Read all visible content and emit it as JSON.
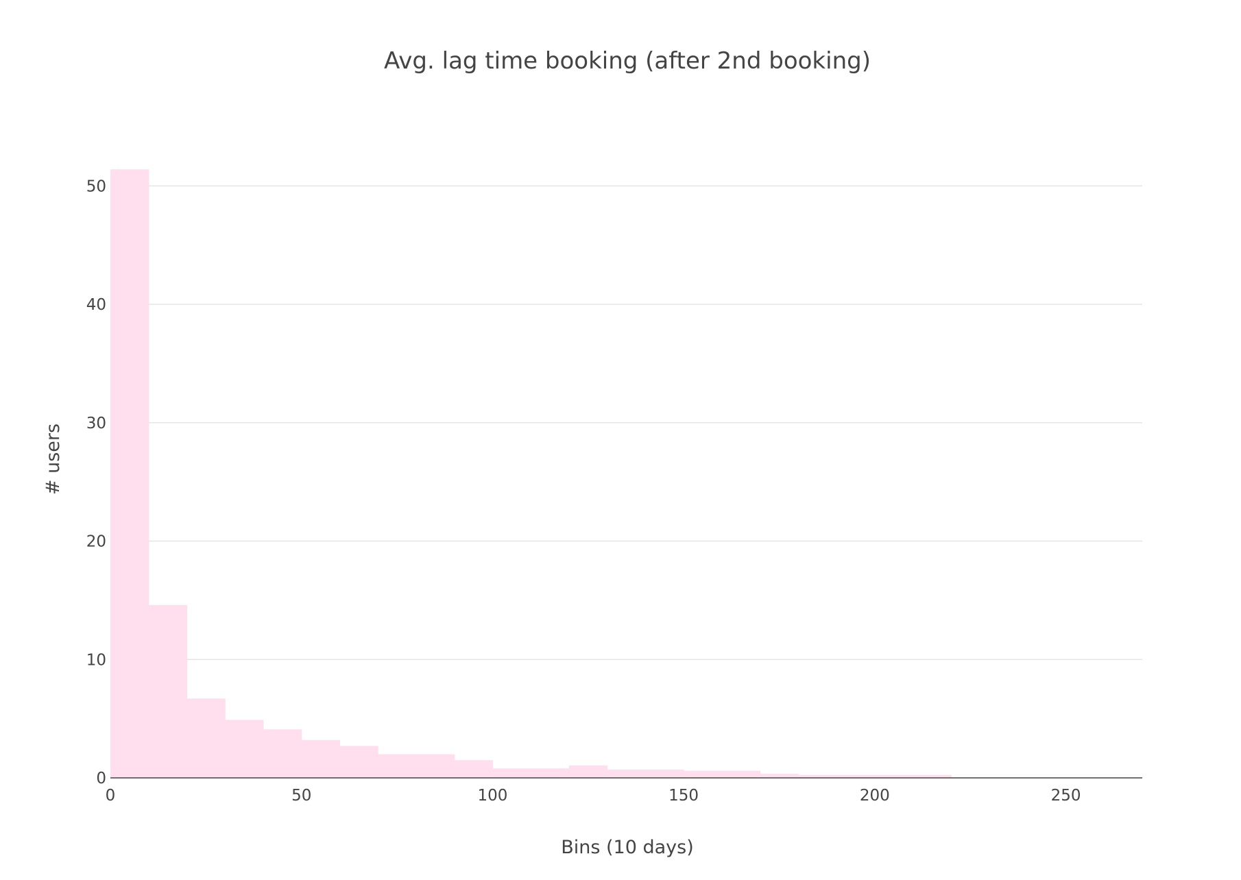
{
  "chart_data": {
    "type": "bar",
    "title": "Avg. lag time booking (after 2nd booking)",
    "xlabel": "Bins (10 days)",
    "ylabel": "# users",
    "bin_width": 10,
    "bins": [
      {
        "start": 0,
        "end": 10,
        "value": 51.4
      },
      {
        "start": 10,
        "end": 20,
        "value": 14.6
      },
      {
        "start": 20,
        "end": 30,
        "value": 6.7
      },
      {
        "start": 30,
        "end": 40,
        "value": 4.9
      },
      {
        "start": 40,
        "end": 50,
        "value": 4.1
      },
      {
        "start": 50,
        "end": 60,
        "value": 3.2
      },
      {
        "start": 60,
        "end": 70,
        "value": 2.7
      },
      {
        "start": 70,
        "end": 80,
        "value": 2.0
      },
      {
        "start": 80,
        "end": 90,
        "value": 2.0
      },
      {
        "start": 90,
        "end": 100,
        "value": 1.5
      },
      {
        "start": 100,
        "end": 110,
        "value": 0.8
      },
      {
        "start": 110,
        "end": 120,
        "value": 0.8
      },
      {
        "start": 120,
        "end": 130,
        "value": 1.05
      },
      {
        "start": 130,
        "end": 140,
        "value": 0.7
      },
      {
        "start": 140,
        "end": 150,
        "value": 0.7
      },
      {
        "start": 150,
        "end": 160,
        "value": 0.6
      },
      {
        "start": 160,
        "end": 170,
        "value": 0.6
      },
      {
        "start": 170,
        "end": 180,
        "value": 0.35
      },
      {
        "start": 180,
        "end": 190,
        "value": 0.25
      },
      {
        "start": 190,
        "end": 200,
        "value": 0.25
      },
      {
        "start": 200,
        "end": 210,
        "value": 0.25
      },
      {
        "start": 210,
        "end": 220,
        "value": 0.25
      },
      {
        "start": 220,
        "end": 230,
        "value": 0.05
      },
      {
        "start": 230,
        "end": 240,
        "value": 0.05
      },
      {
        "start": 240,
        "end": 250,
        "value": 0.05
      },
      {
        "start": 250,
        "end": 260,
        "value": 0.05
      },
      {
        "start": 260,
        "end": 270,
        "value": 0.05
      }
    ],
    "xlim": [
      0,
      270
    ],
    "ylim": [
      0,
      52
    ],
    "xticks": [
      0,
      50,
      100,
      150,
      200,
      250
    ],
    "yticks": [
      0,
      10,
      20,
      30,
      40,
      50
    ],
    "grid": "horizontal",
    "bar_color": "#ffdfee",
    "grid_color": "#e6e6e6",
    "axis_line_color": "#444444"
  }
}
